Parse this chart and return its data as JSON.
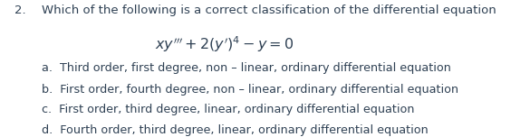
{
  "background_color": "#ffffff",
  "text_color": "#2e4053",
  "question_number": "2.",
  "question_text": "Which of the following is a correct classification of the differential equation",
  "equation": "xy‴ + 2(y′)⁴ − y = 0",
  "options": [
    "a.  Third order, first degree, non – linear, ordinary differential equation",
    "b.  First order, fourth degree, non – linear, ordinary differential equation",
    "c.  First order, third degree, linear, ordinary differential equation",
    "d.  Fourth order, third degree, linear, ordinary differential equation"
  ],
  "figsize": [
    5.85,
    1.52
  ],
  "dpi": 100
}
